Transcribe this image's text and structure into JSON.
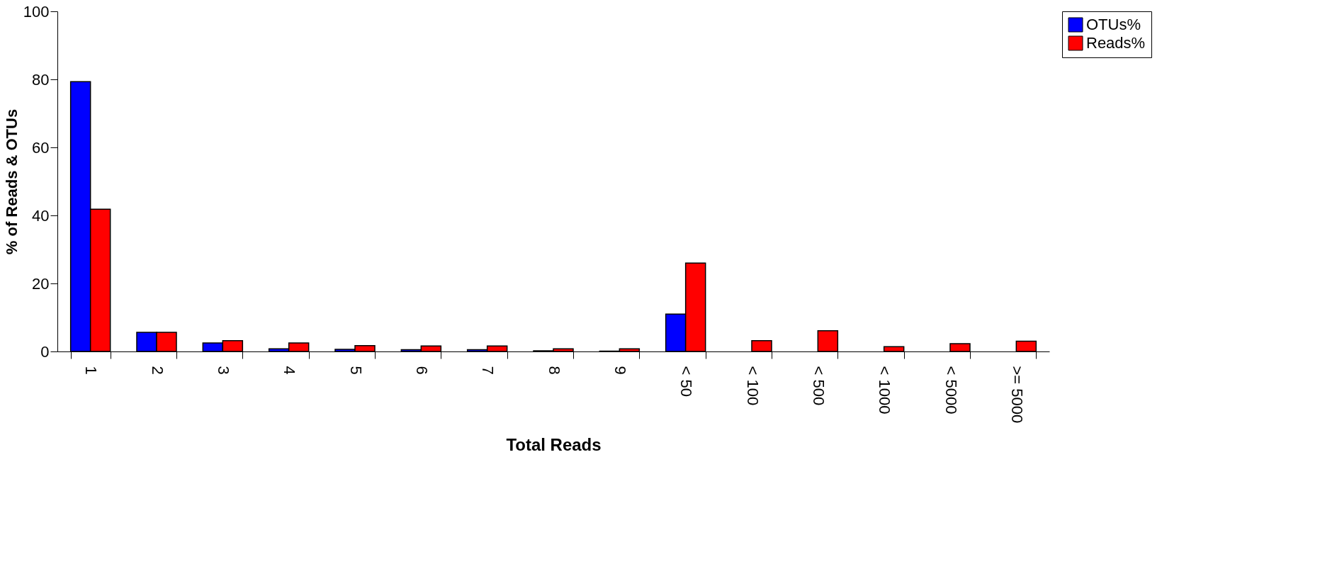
{
  "chart_data": {
    "type": "bar",
    "xlabel": "Total Reads",
    "ylabel": "% of Reads & OTUs",
    "categories": [
      "1",
      "2",
      "3",
      "4",
      "5",
      "6",
      "7",
      "8",
      "9",
      "< 50",
      "< 100",
      "< 500",
      "< 1000",
      "< 5000",
      ">= 5000"
    ],
    "series": [
      {
        "name": "OTUs%",
        "color": "#0000ff",
        "values": [
          79.3,
          5.6,
          2.5,
          0.8,
          0.6,
          0.5,
          0.5,
          0.2,
          0.1,
          11.0,
          null,
          null,
          null,
          null,
          null
        ]
      },
      {
        "name": "Reads%",
        "color": "#ff0000",
        "values": [
          41.8,
          5.6,
          3.2,
          2.5,
          1.7,
          1.6,
          1.6,
          0.8,
          0.8,
          26,
          3.2,
          6.1,
          1.4,
          2.3,
          3.0
        ]
      }
    ],
    "ylim": [
      0,
      100
    ],
    "yticks": [
      0,
      20,
      40,
      60,
      80,
      100
    ],
    "grid": false,
    "legend": "right"
  }
}
